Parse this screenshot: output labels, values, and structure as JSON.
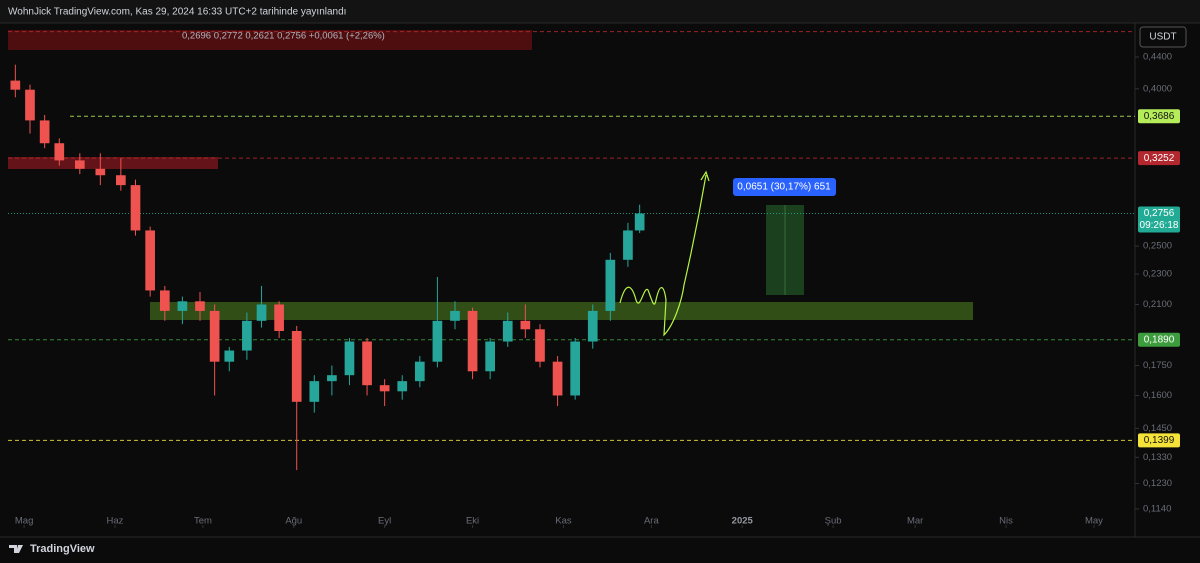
{
  "chart_data": {
    "type": "candlestick",
    "title": "WohnJick TradingView.com, Kas 29, 2024 16:33 UTC+2 tarihinde yayınlandı",
    "ohlc_legend": "0,2696   0,2772   0,2621   0,2756   +0,0061 (+2,26%)",
    "unit_button": "USDT",
    "measure_label": "0,0651 (30,17%) 651",
    "countdown": "09:26:18",
    "brand": "TradingView",
    "log_scale": true,
    "up_color": "#26a69a",
    "down_color": "#ef5350",
    "x": [
      -3,
      2,
      7,
      12,
      19,
      26,
      33,
      38,
      43,
      48,
      54,
      60,
      65,
      70,
      76,
      81,
      87,
      93,
      99,
      105,
      111,
      117,
      123,
      129,
      135,
      141,
      147,
      153,
      159,
      165,
      171,
      176,
      182,
      188,
      194,
      200,
      206,
      210
    ],
    "open": [
      0.41,
      0.399,
      0.364,
      0.34,
      0.323,
      0.315,
      0.309,
      0.3,
      0.262,
      0.219,
      0.206,
      0.212,
      0.206,
      0.177,
      0.183,
      0.2,
      0.21,
      0.194,
      0.157,
      0.167,
      0.17,
      0.188,
      0.165,
      0.162,
      0.167,
      0.177,
      0.2,
      0.206,
      0.172,
      0.188,
      0.2,
      0.195,
      0.177,
      0.16,
      0.188,
      0.206,
      0.24,
      0.262
    ],
    "high": [
      0.43,
      0.405,
      0.37,
      0.345,
      0.33,
      0.33,
      0.325,
      0.305,
      0.265,
      0.222,
      0.215,
      0.218,
      0.21,
      0.185,
      0.205,
      0.222,
      0.212,
      0.197,
      0.17,
      0.175,
      0.19,
      0.19,
      0.168,
      0.17,
      0.18,
      0.228,
      0.212,
      0.208,
      0.19,
      0.205,
      0.21,
      0.198,
      0.18,
      0.19,
      0.21,
      0.245,
      0.268,
      0.283
    ],
    "low": [
      0.39,
      0.35,
      0.335,
      0.318,
      0.31,
      0.3,
      0.295,
      0.258,
      0.215,
      0.2,
      0.198,
      0.2,
      0.16,
      0.172,
      0.178,
      0.196,
      0.19,
      0.128,
      0.152,
      0.16,
      0.165,
      0.16,
      0.155,
      0.158,
      0.164,
      0.174,
      0.195,
      0.168,
      0.168,
      0.185,
      0.19,
      0.174,
      0.155,
      0.158,
      0.184,
      0.2,
      0.235,
      0.26
    ],
    "close": [
      0.399,
      0.364,
      0.34,
      0.323,
      0.315,
      0.309,
      0.3,
      0.262,
      0.219,
      0.206,
      0.212,
      0.206,
      0.177,
      0.183,
      0.2,
      0.21,
      0.194,
      0.157,
      0.167,
      0.17,
      0.188,
      0.165,
      0.162,
      0.167,
      0.177,
      0.2,
      0.206,
      0.172,
      0.188,
      0.2,
      0.195,
      0.177,
      0.16,
      0.188,
      0.206,
      0.24,
      0.262,
      0.2756
    ],
    "xlim": [
      -5.5,
      379
    ],
    "xticks": [
      {
        "value": 0,
        "label": "Mag"
      },
      {
        "value": 31,
        "label": "Haz"
      },
      {
        "value": 61,
        "label": "Tem"
      },
      {
        "value": 92,
        "label": "Ağu"
      },
      {
        "value": 123,
        "label": "Eyl"
      },
      {
        "value": 153,
        "label": "Eki"
      },
      {
        "value": 184,
        "label": "Kas"
      },
      {
        "value": 214,
        "label": "Ara"
      },
      {
        "value": 245,
        "label": "2025"
      },
      {
        "value": 276,
        "label": "Şub"
      },
      {
        "value": 304,
        "label": "Mar"
      },
      {
        "value": 335,
        "label": "Nis"
      },
      {
        "value": 365,
        "label": "May"
      }
    ],
    "ylim": [
      0.108,
      0.487
    ],
    "yticks": [
      {
        "value": 0.44,
        "label": "0,4400"
      },
      {
        "value": 0.4,
        "label": "0,4000"
      },
      {
        "value": 0.25,
        "label": "0,2500"
      },
      {
        "value": 0.23,
        "label": "0,2300"
      },
      {
        "value": 0.21,
        "label": "0,2100"
      },
      {
        "value": 0.175,
        "label": "0,1750"
      },
      {
        "value": 0.16,
        "label": "0,1600"
      },
      {
        "value": 0.145,
        "label": "0,1450"
      },
      {
        "value": 0.133,
        "label": "0,1330"
      },
      {
        "value": 0.123,
        "label": "0,1230"
      },
      {
        "value": 0.114,
        "label": "0,1140"
      }
    ],
    "levels": [
      {
        "value": 0.4746,
        "color": "#b2282e"
      },
      {
        "value": 0.3686,
        "label": "0,3686",
        "color": "#b5ec5a"
      },
      {
        "value": 0.3252,
        "label": "0,3252",
        "color": "#b2282e"
      },
      {
        "value": 0.2756,
        "label": "0,2756",
        "color": "#22ab94"
      },
      {
        "value": 0.189,
        "label": "0,1890",
        "color": "#3d9c3d"
      },
      {
        "value": 0.1399,
        "label": "0,1399",
        "color": "#f5e33a"
      }
    ]
  }
}
